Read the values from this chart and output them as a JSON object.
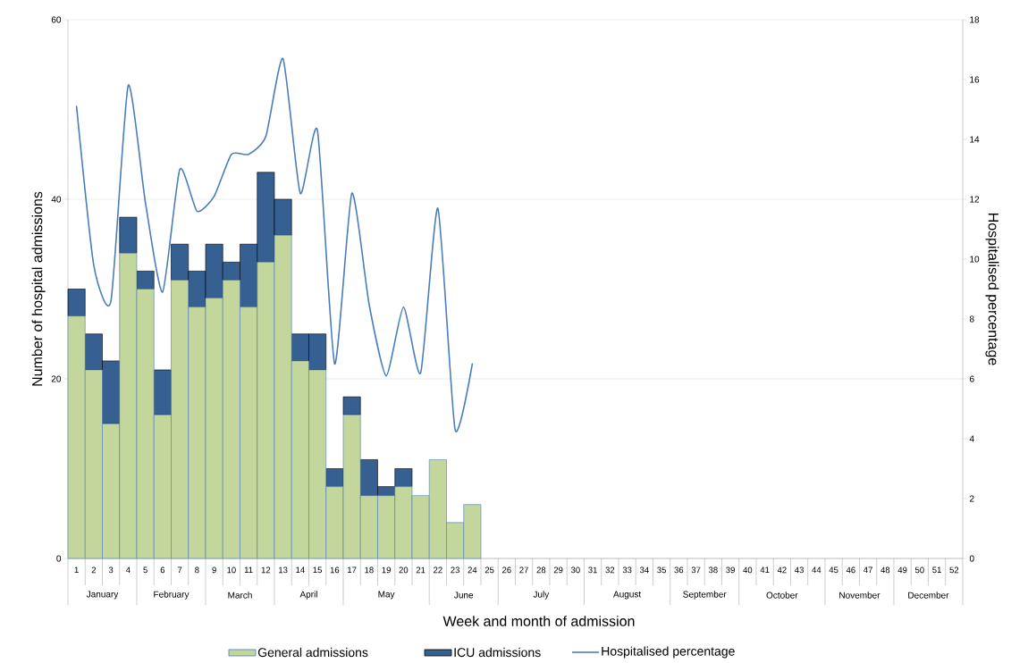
{
  "chart_data": {
    "type": "bar",
    "stacked": true,
    "categories": [
      "1",
      "2",
      "3",
      "4",
      "5",
      "6",
      "7",
      "8",
      "9",
      "10",
      "11",
      "12",
      "13",
      "14",
      "15",
      "16",
      "17",
      "18",
      "19",
      "20",
      "21",
      "22",
      "23",
      "24",
      "25",
      "26",
      "27",
      "28",
      "29",
      "30",
      "31",
      "32",
      "33",
      "34",
      "35",
      "36",
      "37",
      "38",
      "39",
      "40",
      "41",
      "42",
      "43",
      "44",
      "45",
      "46",
      "47",
      "48",
      "49",
      "50",
      "51",
      "52"
    ],
    "series": [
      {
        "name": "General admissions",
        "type": "bar",
        "color": "#c3d69b",
        "values": [
          27,
          21,
          15,
          34,
          30,
          16,
          31,
          28,
          29,
          31,
          28,
          33,
          36,
          22,
          21,
          8,
          16,
          7,
          7,
          8,
          7,
          11,
          4,
          6,
          null,
          null,
          null,
          null,
          null,
          null,
          null,
          null,
          null,
          null,
          null,
          null,
          null,
          null,
          null,
          null,
          null,
          null,
          null,
          null,
          null,
          null,
          null,
          null,
          null,
          null,
          null,
          null
        ]
      },
      {
        "name": "ICU admissions",
        "type": "bar",
        "color": "#376092",
        "values": [
          3,
          4,
          7,
          4,
          2,
          5,
          4,
          4,
          6,
          2,
          7,
          10,
          4,
          3,
          4,
          2,
          2,
          4,
          1,
          2,
          null,
          null,
          null,
          null,
          null,
          null,
          null,
          null,
          null,
          null,
          null,
          null,
          null,
          null,
          null,
          null,
          null,
          null,
          null,
          null,
          null,
          null,
          null,
          null,
          null,
          null,
          null,
          null,
          null,
          null,
          null,
          null
        ]
      },
      {
        "name": "Hospitalised percentage",
        "type": "line",
        "axis": "y2",
        "color": "#4a7ebb",
        "values": [
          15.1,
          9.8,
          8.6,
          15.8,
          11.9,
          8.9,
          13.0,
          11.6,
          12.1,
          13.5,
          13.5,
          14.1,
          16.7,
          12.2,
          14.3,
          6.5,
          12.2,
          8.5,
          6.1,
          8.4,
          6.2,
          11.7,
          4.3,
          6.5,
          null,
          null,
          null,
          null,
          null,
          null,
          null,
          null,
          null,
          null,
          null,
          null,
          null,
          null,
          null,
          null,
          null,
          null,
          null,
          null,
          null,
          null,
          null,
          null,
          null,
          null,
          null,
          null
        ]
      }
    ],
    "ylim": [
      0,
      60
    ],
    "yticks": [
      0,
      20,
      40,
      60
    ],
    "y2lim": [
      0,
      18
    ],
    "y2ticks": [
      0,
      2,
      4,
      6,
      8,
      10,
      12,
      14,
      16,
      18
    ],
    "xlabel": "Week and month of admission",
    "ylabel": "Number of hospital admissions",
    "y2label": "Hospitalised percentage",
    "annotations": [
      "January",
      "February",
      "March",
      "April",
      "May",
      "June",
      "July",
      "August",
      "September",
      "October",
      "November",
      "December"
    ],
    "grid": "y",
    "legend": "bottom"
  }
}
